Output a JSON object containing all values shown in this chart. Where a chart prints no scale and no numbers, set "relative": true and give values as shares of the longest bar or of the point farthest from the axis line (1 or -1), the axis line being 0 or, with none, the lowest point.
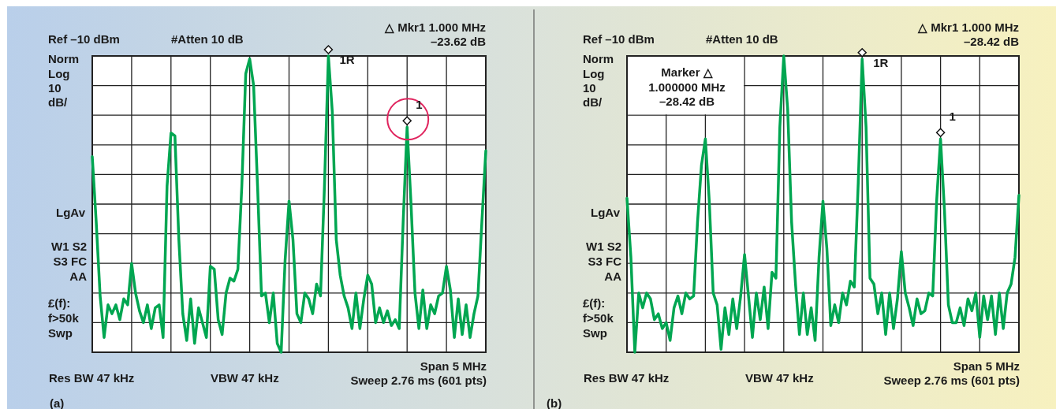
{
  "chart_data": [
    {
      "type": "line",
      "relative": true,
      "grid": true,
      "categories": [
        null,
        null,
        null,
        null,
        null,
        null,
        null,
        null,
        null,
        null,
        null,
        null,
        null,
        null,
        null,
        null,
        null,
        null,
        null,
        null,
        null,
        null,
        null,
        null,
        null,
        null,
        null,
        null,
        null,
        null,
        null,
        null,
        null,
        null,
        null,
        null,
        null,
        null,
        null,
        null,
        null,
        null,
        null,
        null,
        null,
        null,
        null,
        null,
        null,
        null,
        null,
        null,
        null,
        null,
        null,
        null,
        null,
        null,
        null,
        null,
        null,
        null,
        null,
        null,
        null,
        null,
        null,
        null,
        null,
        null,
        null,
        null,
        null,
        null,
        null,
        null,
        null,
        null,
        null,
        null,
        null,
        null,
        null,
        null,
        null,
        null,
        null,
        null,
        null,
        null,
        null,
        null,
        null,
        null,
        null,
        null,
        null,
        null,
        null,
        null,
        null
      ],
      "series": [
        {
          "color": "#00a651",
          "values": [
            0.66,
            0.44,
            0.19,
            0.05,
            0.16,
            0.13,
            0.16,
            0.11,
            0.18,
            0.16,
            0.3,
            0.2,
            0.14,
            0.1,
            0.16,
            0.08,
            0.15,
            0.16,
            0.05,
            0.56,
            0.74,
            0.73,
            0.38,
            0.13,
            0.04,
            0.18,
            0.03,
            0.15,
            0.1,
            0.05,
            0.29,
            0.28,
            0.11,
            0.06,
            0.2,
            0.25,
            0.24,
            0.28,
            0.56,
            0.94,
            0.99,
            0.9,
            0.56,
            0.19,
            0.2,
            0.1,
            0.2,
            0.03,
            0,
            0.31,
            0.51,
            0.38,
            0.13,
            0.1,
            0.2,
            0.18,
            0.13,
            0.23,
            0.19,
            0.56,
            1,
            0.81,
            0.38,
            0.26,
            0.19,
            0.15,
            0.08,
            0.2,
            0.08,
            0.18,
            0.26,
            0.23,
            0.1,
            0.15,
            0.1,
            0.14,
            0.09,
            0.11,
            0.08,
            0.44,
            0.76,
            0.5,
            0.2,
            0.08,
            0.21,
            0.08,
            0.16,
            0.13,
            0.19,
            0.2,
            0.29,
            0.21,
            0.05,
            0.18,
            0.06,
            0.16,
            0.05,
            0.13,
            0.19,
            0.44,
            0.68
          ]
        }
      ],
      "annotations": [
        "Ref –10 dBm",
        "#Atten 10 dB",
        "△ Mkr1 1.000 MHz",
        "–23.62 dB",
        "Norm",
        "Log",
        "10",
        "dB/",
        "LgAv",
        "W1 S2",
        "S3 FC",
        "AA",
        "£(f):",
        "f>50k",
        "Swp",
        "Res BW 47 kHz",
        "VBW 47 kHz",
        "Span 5 MHz",
        "Sweep 2.76 ms (601 pts)",
        "(a)",
        "1R",
        "1"
      ]
    },
    {
      "type": "line",
      "relative": true,
      "grid": true,
      "categories": [
        null,
        null,
        null,
        null,
        null,
        null,
        null,
        null,
        null,
        null,
        null,
        null,
        null,
        null,
        null,
        null,
        null,
        null,
        null,
        null,
        null,
        null,
        null,
        null,
        null,
        null,
        null,
        null,
        null,
        null,
        null,
        null,
        null,
        null,
        null,
        null,
        null,
        null,
        null,
        null,
        null,
        null,
        null,
        null,
        null,
        null,
        null,
        null,
        null,
        null,
        null,
        null,
        null,
        null,
        null,
        null,
        null,
        null,
        null,
        null,
        null,
        null,
        null,
        null,
        null,
        null,
        null,
        null,
        null,
        null,
        null,
        null,
        null,
        null,
        null,
        null,
        null,
        null,
        null,
        null,
        null,
        null,
        null,
        null,
        null,
        null,
        null,
        null,
        null,
        null,
        null,
        null,
        null,
        null,
        null,
        null,
        null,
        null,
        null,
        null,
        null
      ],
      "series": [
        {
          "color": "#00a651",
          "values": [
            0.52,
            0.32,
            0,
            0.2,
            0.15,
            0.2,
            0.18,
            0.11,
            0.13,
            0.08,
            0.1,
            0.04,
            0.15,
            0.19,
            0.13,
            0.2,
            0.18,
            0.19,
            0.44,
            0.63,
            0.72,
            0.51,
            0.2,
            0.16,
            0.01,
            0.15,
            0.06,
            0.18,
            0.08,
            0.19,
            0.33,
            0.19,
            0.05,
            0.2,
            0.11,
            0.22,
            0.08,
            0.27,
            0.25,
            0.76,
            1,
            0.82,
            0.44,
            0.23,
            0.06,
            0.2,
            0.06,
            0.15,
            0.04,
            0.32,
            0.51,
            0.35,
            0.09,
            0.16,
            0.1,
            0.2,
            0.16,
            0.24,
            0.22,
            0.57,
            0.99,
            0.76,
            0.25,
            0.23,
            0.13,
            0.2,
            0.06,
            0.2,
            0.08,
            0.18,
            0.34,
            0.2,
            0.15,
            0.09,
            0.18,
            0.13,
            0.14,
            0.2,
            0.19,
            0.51,
            0.72,
            0.48,
            0.16,
            0.1,
            0.1,
            0.15,
            0.09,
            0.18,
            0.14,
            0.2,
            0.05,
            0.19,
            0.11,
            0.19,
            0.06,
            0.2,
            0.08,
            0.2,
            0.23,
            0.32,
            0.53
          ]
        }
      ],
      "annotations": [
        "Ref –10 dBm",
        "#Atten 10 dB",
        "△ Mkr1 1.000 MHz",
        "–28.42 dB",
        "Norm",
        "Log",
        "10",
        "dB/",
        "LgAv",
        "W1 S2",
        "S3 FC",
        "AA",
        "£(f):",
        "f>50k",
        "Swp",
        "Res BW 47 kHz",
        "VBW 47 kHz",
        "Span 5 MHz",
        "Sweep 2.76 ms (601 pts)",
        "(b)",
        "1R",
        "1",
        "Marker △",
        "1.000000 MHz",
        "–28.42 dB"
      ]
    }
  ]
}
